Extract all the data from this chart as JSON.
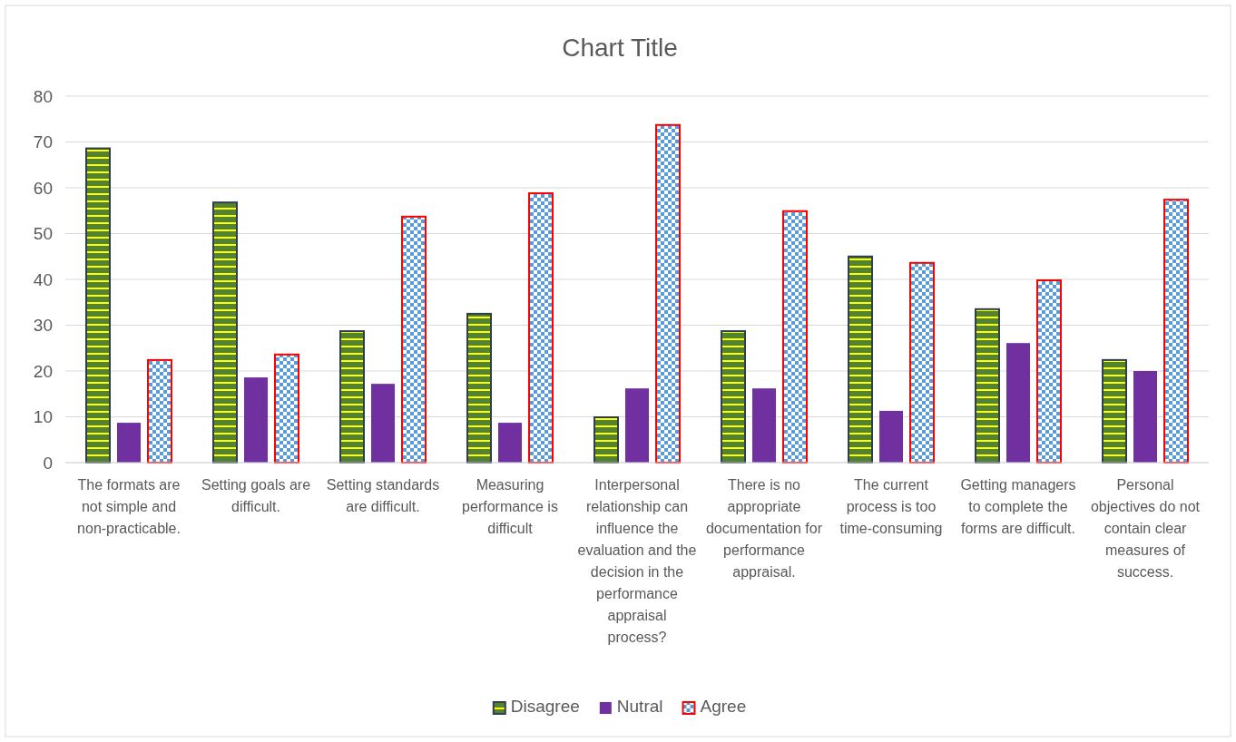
{
  "chart_data": {
    "type": "bar",
    "title": "Chart Title",
    "categories": [
      "The formats are not simple and non-practicable.",
      "Setting goals are difficult.",
      "Setting standards are difficult.",
      "Measuring performance is difficult",
      "Interpersonal relationship can influence the evaluation and the decision in the performance appraisal process?",
      "There is no appropriate documentation for performance appraisal.",
      "The current process is too time-consuming",
      "Getting managers to complete the forms are difficult.",
      "Personal objectives do not contain clear measures of success."
    ],
    "series": [
      {
        "name": "Disagree",
        "color": "#2f3f4f",
        "values": [
          68.6,
          56.8,
          28.7,
          32.5,
          9.9,
          28.7,
          45,
          33.5,
          22.4
        ]
      },
      {
        "name": "Nutral",
        "color": "#7030a0",
        "values": [
          8.7,
          18.6,
          17.2,
          8.7,
          16.2,
          16.2,
          11.3,
          26.1,
          20
        ]
      },
      {
        "name": "Agree",
        "color": "#ff0000",
        "values": [
          22.4,
          23.6,
          53.7,
          58.8,
          73.7,
          54.9,
          43.6,
          39.8,
          57.4
        ]
      }
    ],
    "ylim": [
      0,
      80
    ],
    "yticks": [
      0,
      10,
      20,
      30,
      40,
      50,
      60,
      70,
      80
    ],
    "grid": "y",
    "legend": "bottom"
  }
}
